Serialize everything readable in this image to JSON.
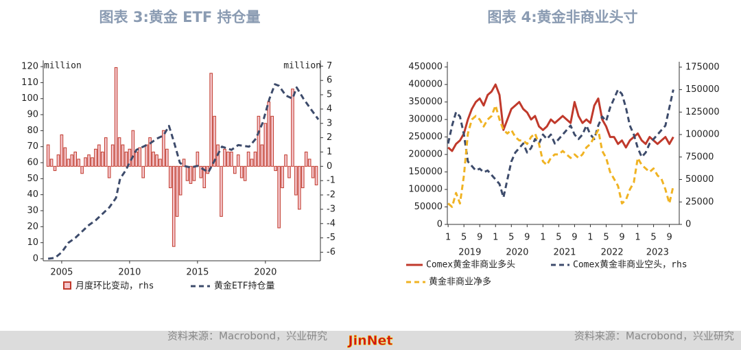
{
  "chart_data": [
    {
      "type": "combo",
      "title": "图表 3:黄金 ETF 持仓量",
      "source": "资料来源：Macrobond，兴业研究",
      "ylabel": "million",
      "y2label": "million",
      "xlim": [
        2003.64,
        2024.05
      ],
      "xticks": [
        2005,
        2010,
        2015,
        2020
      ],
      "ylim": [
        -1.3,
        123.9
      ],
      "yticks": [
        0,
        10,
        20,
        30,
        40,
        50,
        60,
        70,
        80,
        90,
        100,
        110,
        120
      ],
      "y2lim": [
        -6.6,
        7.4
      ],
      "y2ticks": [
        -6,
        -5,
        -4,
        -3,
        -2,
        -1,
        0,
        1,
        2,
        3,
        4,
        5,
        6,
        7
      ],
      "series": [
        {
          "name": "月度环比变动，rhs",
          "type": "bar",
          "axis": "y2",
          "color": "#f4c6cc",
          "edge_color": "#c0392b",
          "x": [
            2004,
            2004.25,
            2004.5,
            2004.75,
            2005,
            2005.25,
            2005.5,
            2005.75,
            2006,
            2006.25,
            2006.5,
            2006.75,
            2007,
            2007.25,
            2007.5,
            2007.75,
            2008,
            2008.25,
            2008.5,
            2008.75,
            2009,
            2009.25,
            2009.5,
            2009.75,
            2010,
            2010.25,
            2010.5,
            2010.75,
            2011,
            2011.25,
            2011.5,
            2011.75,
            2012,
            2012.25,
            2012.5,
            2012.75,
            2013,
            2013.25,
            2013.5,
            2013.75,
            2014,
            2014.25,
            2014.5,
            2014.75,
            2015,
            2015.25,
            2015.5,
            2015.75,
            2016,
            2016.25,
            2016.5,
            2016.75,
            2017,
            2017.25,
            2017.5,
            2017.75,
            2018,
            2018.25,
            2018.5,
            2018.75,
            2019,
            2019.25,
            2019.5,
            2019.75,
            2020,
            2020.25,
            2020.5,
            2020.75,
            2021,
            2021.25,
            2021.5,
            2021.75,
            2022,
            2022.25,
            2022.5,
            2022.75,
            2023,
            2023.25,
            2023.5,
            2023.75
          ],
          "values": [
            1.5,
            0.5,
            -0.3,
            0.8,
            2.2,
            1.3,
            0.5,
            0.8,
            1.0,
            0.5,
            -0.5,
            0.6,
            0.8,
            0.6,
            1.2,
            1.5,
            1.0,
            2.0,
            -0.8,
            1.5,
            6.9,
            2.0,
            1.5,
            1.0,
            1.2,
            2.5,
            1.0,
            1.3,
            -0.8,
            1.5,
            2.0,
            1.0,
            0.8,
            0.5,
            2.5,
            1.2,
            -1.5,
            -5.6,
            -3.5,
            -2.0,
            0.5,
            -1.0,
            -1.2,
            -1.0,
            1.0,
            -0.8,
            -1.5,
            -0.5,
            6.5,
            3.5,
            1.5,
            -3.5,
            1.2,
            1.0,
            1.0,
            -0.5,
            0.8,
            -0.8,
            -1.0,
            1.0,
            0.5,
            1.0,
            3.5,
            1.5,
            3.0,
            4.5,
            3.5,
            -0.3,
            -4.3,
            -1.5,
            0.8,
            -0.8,
            5.4,
            -2.0,
            -3.0,
            -1.5,
            1.0,
            0.5,
            -0.8,
            -1.3
          ]
        },
        {
          "name": "黄金ETF持仓量",
          "type": "line",
          "dash": true,
          "color": "#3d4b6b",
          "x": [
            2004.0,
            2004.5,
            2005.0,
            2005.5,
            2006.0,
            2006.5,
            2007.0,
            2007.5,
            2008.0,
            2008.5,
            2009.0,
            2009.3,
            2009.7,
            2010.0,
            2010.5,
            2011.0,
            2011.5,
            2012.0,
            2012.5,
            2012.9,
            2013.3,
            2013.7,
            2014.0,
            2014.5,
            2015.0,
            2015.8,
            2016.3,
            2016.8,
            2017.5,
            2018.0,
            2018.8,
            2019.3,
            2019.8,
            2020.3,
            2020.7,
            2021.0,
            2021.5,
            2022.0,
            2022.3,
            2022.8,
            2023.3,
            2023.9
          ],
          "values": [
            0,
            0.5,
            4,
            10,
            13,
            17,
            21,
            24,
            28,
            32,
            38,
            50,
            55,
            60,
            68,
            70,
            72,
            75,
            77,
            83,
            72,
            60,
            58,
            57,
            58,
            54,
            62,
            70,
            68,
            71,
            70,
            75,
            85,
            100,
            109,
            108,
            102,
            100,
            107,
            100,
            94,
            87
          ]
        }
      ]
    },
    {
      "type": "line",
      "title": "图表 4:黄金非商业头寸",
      "source": "资料来源：Macrobond，兴业研究",
      "xlim": [
        -0.2,
        58.5
      ],
      "xticks": [
        {
          "value": 0,
          "label": "1"
        },
        {
          "value": 4,
          "label": "5"
        },
        {
          "value": 8,
          "label": "9"
        },
        {
          "value": 12,
          "label": "1"
        },
        {
          "value": 16,
          "label": "5"
        },
        {
          "value": 20,
          "label": "9"
        },
        {
          "value": 24,
          "label": "1"
        },
        {
          "value": 28,
          "label": "5"
        },
        {
          "value": 32,
          "label": "9"
        },
        {
          "value": 36,
          "label": "1"
        },
        {
          "value": 40,
          "label": "5"
        },
        {
          "value": 44,
          "label": "9"
        },
        {
          "value": 48,
          "label": "1"
        },
        {
          "value": 52,
          "label": "5"
        },
        {
          "value": 56,
          "label": "9"
        }
      ],
      "year_labels": [
        {
          "value": 5.5,
          "label": "2019"
        },
        {
          "value": 17.5,
          "label": "2020"
        },
        {
          "value": 29.5,
          "label": "2021"
        },
        {
          "value": 41.5,
          "label": "2022"
        },
        {
          "value": 53,
          "label": "2023"
        }
      ],
      "ylim": [
        0,
        465000
      ],
      "yticks": [
        0,
        50000,
        100000,
        150000,
        200000,
        250000,
        300000,
        350000,
        400000,
        450000
      ],
      "y2lim": [
        0,
        181000
      ],
      "y2ticks": [
        0,
        25000,
        50000,
        75000,
        100000,
        125000,
        150000,
        175000
      ],
      "series": [
        {
          "name": "Comex黄金非商业多头",
          "color": "#c0392b",
          "values": [
            220000,
            210000,
            230000,
            240000,
            260000,
            300000,
            330000,
            350000,
            360000,
            340000,
            370000,
            380000,
            400000,
            370000,
            270000,
            300000,
            330000,
            340000,
            350000,
            330000,
            320000,
            300000,
            310000,
            280000,
            270000,
            280000,
            300000,
            290000,
            300000,
            310000,
            300000,
            290000,
            350000,
            310000,
            290000,
            300000,
            290000,
            340000,
            360000,
            300000,
            280000,
            250000,
            250000,
            230000,
            240000,
            220000,
            240000,
            250000,
            260000,
            240000,
            230000,
            250000,
            240000,
            230000,
            240000,
            250000,
            230000,
            250000
          ]
        },
        {
          "name": "Comex黄金非商业空头，rhs",
          "axis": "y2",
          "dash": true,
          "color": "#3d4b6b",
          "values": [
            90000,
            110000,
            125000,
            120000,
            100000,
            70000,
            65000,
            60000,
            62000,
            58000,
            60000,
            55000,
            50000,
            45000,
            30000,
            50000,
            70000,
            80000,
            85000,
            90000,
            80000,
            85000,
            95000,
            90000,
            100000,
            95000,
            100000,
            90000,
            95000,
            100000,
            105000,
            110000,
            100000,
            95000,
            100000,
            110000,
            100000,
            95000,
            110000,
            120000,
            115000,
            130000,
            140000,
            150000,
            145000,
            130000,
            110000,
            100000,
            85000,
            75000,
            80000,
            90000,
            95000,
            100000,
            105000,
            110000,
            130000,
            150000
          ]
        },
        {
          "name": "黄金非商业净多",
          "dash": true,
          "color": "#f0b323",
          "values": [
            60000,
            50000,
            90000,
            60000,
            140000,
            260000,
            300000,
            310000,
            300000,
            280000,
            300000,
            310000,
            340000,
            300000,
            270000,
            260000,
            270000,
            250000,
            240000,
            240000,
            230000,
            250000,
            260000,
            230000,
            180000,
            170000,
            190000,
            200000,
            200000,
            210000,
            200000,
            190000,
            200000,
            190000,
            200000,
            220000,
            230000,
            250000,
            270000,
            210000,
            190000,
            150000,
            130000,
            110000,
            60000,
            70000,
            100000,
            120000,
            190000,
            170000,
            160000,
            150000,
            160000,
            140000,
            130000,
            100000,
            60000,
            110000
          ]
        }
      ]
    }
  ],
  "watermark": "JinNet"
}
